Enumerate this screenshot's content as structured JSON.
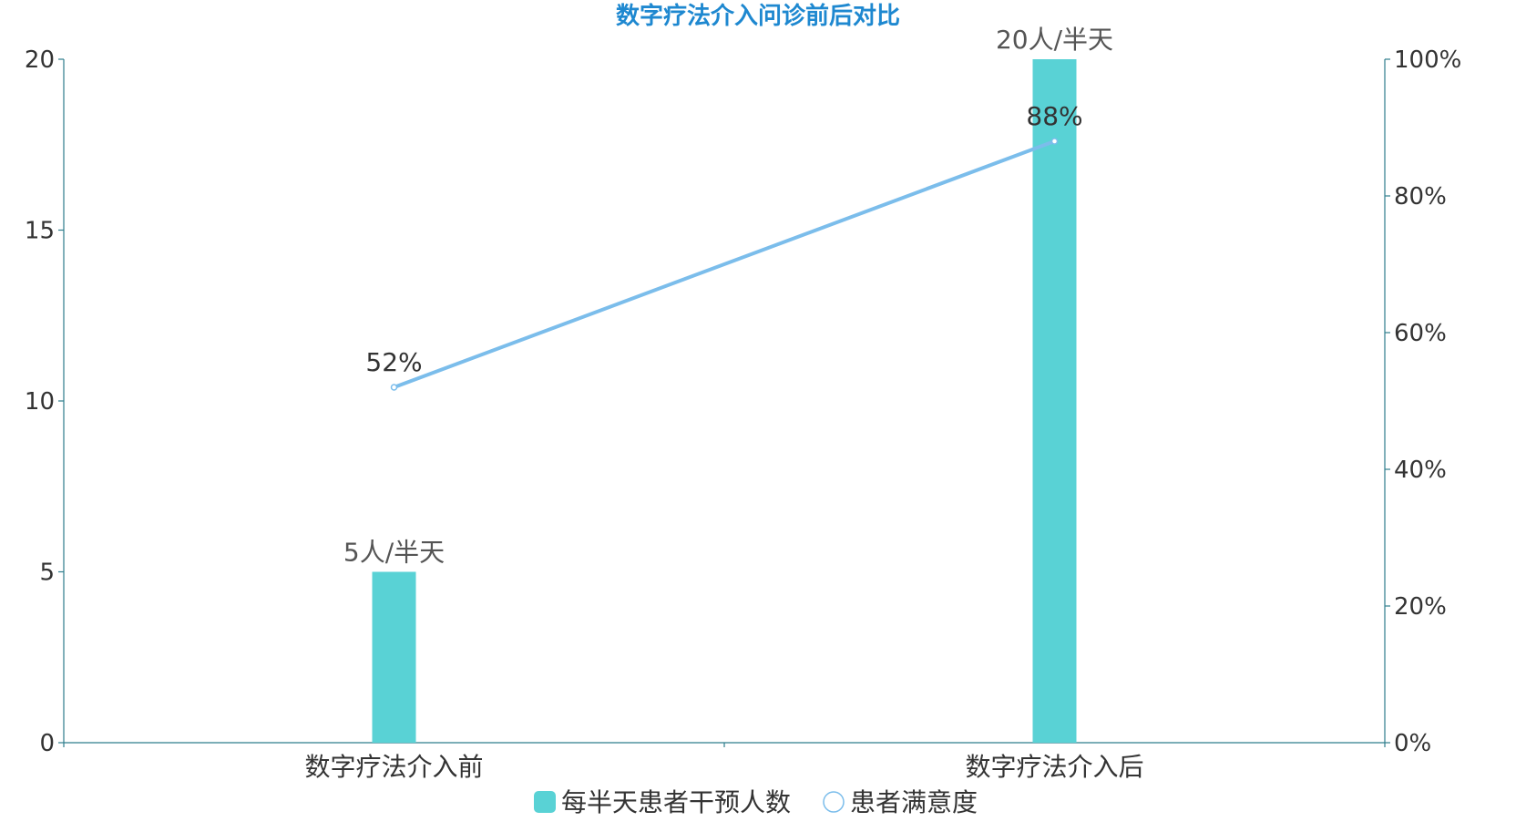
{
  "chart_data": {
    "type": "bar",
    "title": "数字疗法介入问诊前后对比",
    "categories": [
      "数字疗法介入前",
      "数字疗法介入后"
    ],
    "series": [
      {
        "name": "每半天患者干预人数",
        "type": "bar",
        "axis": "left",
        "values": [
          5,
          20
        ],
        "labels": [
          "5人/半天",
          "20人/半天"
        ],
        "color": "#59D2D5"
      },
      {
        "name": "患者满意度",
        "type": "line",
        "axis": "right",
        "values": [
          52,
          88
        ],
        "labels": [
          "52%",
          "88%"
        ],
        "color": "#7BBDEB"
      }
    ],
    "y_left": {
      "min": 0,
      "max": 20,
      "ticks": [
        0,
        5,
        10,
        15,
        20
      ]
    },
    "y_right": {
      "min": 0,
      "max": 100,
      "ticks": [
        0,
        20,
        40,
        60,
        80,
        100
      ],
      "tick_labels": [
        "0%",
        "20%",
        "40%",
        "60%",
        "80%",
        "100%"
      ]
    },
    "grid": false,
    "legend_position": "bottom-center",
    "title_color": "#1E88D0",
    "axis_color": "#2E7D8C",
    "text_color": "#333333",
    "label_color": "#555555"
  }
}
